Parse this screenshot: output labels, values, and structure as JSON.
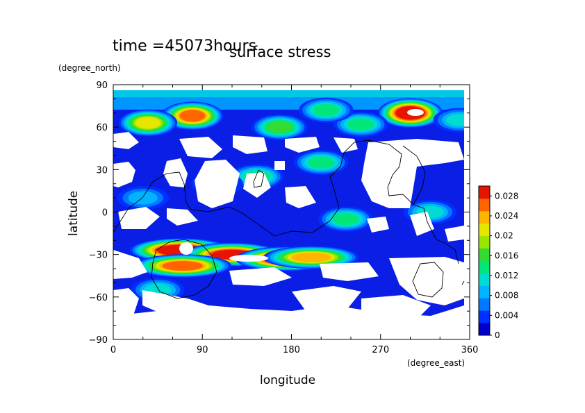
{
  "header": {
    "time_label": "time =45073hours",
    "title": "surface stress"
  },
  "chart_data": {
    "type": "heatmap",
    "title": "surface stress",
    "subtitle": "time =45073hours",
    "xlabel": "longitude",
    "ylabel": "latitude",
    "x_unit": "(degree_east)",
    "y_unit": "(degree_north)",
    "xlim": [
      0,
      360
    ],
    "ylim": [
      -90,
      90
    ],
    "x_ticks": [
      0,
      90,
      180,
      270,
      360
    ],
    "y_ticks": [
      90,
      60,
      30,
      0,
      -30,
      -60,
      -90
    ],
    "colorbar": {
      "min": 0,
      "max": 0.03,
      "labels": [
        "0.028",
        "0.024",
        "0.02",
        "0.016",
        "0.012",
        "0.008",
        "0.004",
        "0"
      ],
      "colors": [
        "#0000c8",
        "#0030ff",
        "#0078ff",
        "#00b4ff",
        "#00dcd2",
        "#00e678",
        "#32dc32",
        "#96e600",
        "#e6e600",
        "#ffb400",
        "#ff6400",
        "#e61400"
      ]
    },
    "hotspots": [
      {
        "lon": 80,
        "lat": 68,
        "value": 0.024
      },
      {
        "lon": 35,
        "lat": 63,
        "value": 0.02
      },
      {
        "lon": 168,
        "lat": 60,
        "value": 0.016
      },
      {
        "lon": 300,
        "lat": 70,
        "value": 0.03
      },
      {
        "lon": 250,
        "lat": 62,
        "value": 0.012
      },
      {
        "lon": 350,
        "lat": 65,
        "value": 0.01
      },
      {
        "lon": 215,
        "lat": 72,
        "value": 0.012
      },
      {
        "lon": 68,
        "lat": -27,
        "value": 0.03
      },
      {
        "lon": 120,
        "lat": -30,
        "value": 0.028
      },
      {
        "lon": 175,
        "lat": -33,
        "value": 0.03
      },
      {
        "lon": 200,
        "lat": -32,
        "value": 0.022
      },
      {
        "lon": 70,
        "lat": -38,
        "value": 0.024
      },
      {
        "lon": 45,
        "lat": -55,
        "value": 0.01
      },
      {
        "lon": 210,
        "lat": 35,
        "value": 0.012
      },
      {
        "lon": 145,
        "lat": 25,
        "value": 0.012
      },
      {
        "lon": 105,
        "lat": 20,
        "value": 0.008
      },
      {
        "lon": 235,
        "lat": -5,
        "value": 0.012
      },
      {
        "lon": 320,
        "lat": 0,
        "value": 0.01
      },
      {
        "lon": 30,
        "lat": 10,
        "value": 0.008
      }
    ],
    "land_outlines": [
      "South America",
      "Africa",
      "Australia",
      "Antarctica coast"
    ]
  }
}
